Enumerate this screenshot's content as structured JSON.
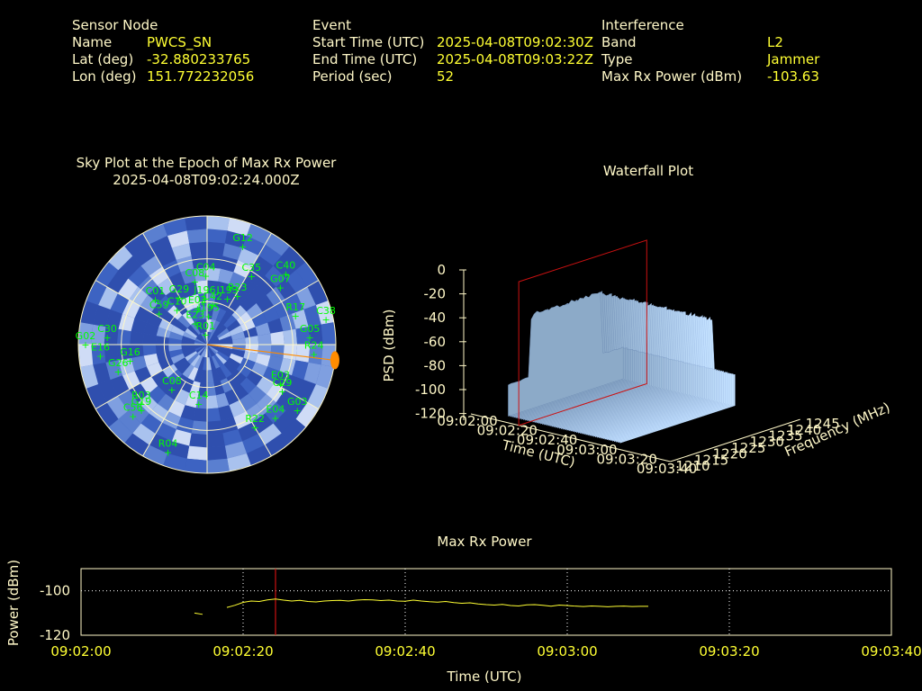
{
  "info": {
    "sensor": {
      "header": "Sensor Node",
      "name_label": "Name",
      "name_value": "PWCS_SN",
      "lat_label": "Lat (deg)",
      "lat_value": "-32.880233765",
      "lon_label": "Lon (deg)",
      "lon_value": "151.772232056"
    },
    "event": {
      "header": "Event",
      "start_label": "Start Time (UTC)",
      "start_value": "2025-04-08T09:02:30Z",
      "end_label": "End Time (UTC)",
      "end_value": "2025-04-08T09:03:22Z",
      "period_label": "Period (sec)",
      "period_value": "52"
    },
    "interference": {
      "header": "Interference",
      "band_label": "Band",
      "band_value": "L2",
      "type_label": "Type",
      "type_value": "Jammer",
      "maxrx_label": "Max Rx Power (dBm)",
      "maxrx_value": "-103.63"
    }
  },
  "colors": {
    "text": "#fff8c8",
    "value": "#ffff33",
    "sat": "#00ff00",
    "red": "#cc1111",
    "orange": "#ff8c00"
  },
  "chart_data": [
    {
      "type": "scatter",
      "name": "sky-plot",
      "title": "Sky Plot at the Epoch of Max Rx Power",
      "subtitle": "2025-04-08T09:02:24.000Z",
      "satellites": [
        {
          "id": "R01",
          "az": 351,
          "el": 83
        },
        {
          "id": "J195",
          "az": 3,
          "el": 70
        },
        {
          "id": "C42",
          "az": 8,
          "el": 62
        },
        {
          "id": "E23",
          "az": 331,
          "el": 73
        },
        {
          "id": "E02",
          "az": 345,
          "el": 64
        },
        {
          "id": "J196",
          "az": 357,
          "el": 58
        },
        {
          "id": "C10",
          "az": 319,
          "el": 58
        },
        {
          "id": "G29",
          "az": 329,
          "el": 52
        },
        {
          "id": "J193",
          "az": 24,
          "el": 55
        },
        {
          "id": "R23",
          "az": 32,
          "el": 50
        },
        {
          "id": "C08",
          "az": 349,
          "el": 45
        },
        {
          "id": "C04",
          "az": 359,
          "el": 42
        },
        {
          "id": "C59",
          "az": 303,
          "el": 50
        },
        {
          "id": "C01",
          "az": 311,
          "el": 42
        },
        {
          "id": "G07",
          "az": 52,
          "el": 25
        },
        {
          "id": "C35",
          "az": 33,
          "el": 33
        },
        {
          "id": "C38",
          "az": 78,
          "el": 5
        },
        {
          "id": "G12",
          "az": 20,
          "el": 17
        },
        {
          "id": "C40",
          "az": 48,
          "el": 16
        },
        {
          "id": "G02",
          "az": 270,
          "el": 5
        },
        {
          "id": "C30",
          "az": 274,
          "el": 20
        },
        {
          "id": "R17",
          "az": 72,
          "el": 25
        },
        {
          "id": "E16",
          "az": 264,
          "el": 15
        },
        {
          "id": "G16",
          "az": 258,
          "el": 35
        },
        {
          "id": "G05",
          "az": 86,
          "el": 18
        },
        {
          "id": "R24",
          "az": 95,
          "el": 15
        },
        {
          "id": "E03",
          "az": 118,
          "el": 32
        },
        {
          "id": "C29",
          "az": 122,
          "el": 28
        },
        {
          "id": "G03",
          "az": 126,
          "el": 12
        },
        {
          "id": "E04",
          "az": 137,
          "el": 20
        },
        {
          "id": "R22",
          "az": 150,
          "el": 23
        },
        {
          "id": "G26",
          "az": 253,
          "el": 25
        },
        {
          "id": "R03",
          "az": 228,
          "el": 28
        },
        {
          "id": "C14",
          "az": 188,
          "el": 48
        },
        {
          "id": "C08b",
          "az": 218,
          "el": 50
        },
        {
          "id": "G19",
          "az": 225,
          "el": 25
        },
        {
          "id": "C56",
          "az": 226,
          "el": 18
        },
        {
          "id": "R04",
          "az": 200,
          "el": 10
        }
      ],
      "interference_azimuth_deg": 97,
      "interference_elevation_deg": 0
    },
    {
      "type": "area",
      "name": "waterfall-plot",
      "title": "Waterfall Plot",
      "xlabel": "Time (UTC)",
      "ylabel": "Frequency (MHz)",
      "zlabel": "PSD (dBm)",
      "x_ticks": [
        "09:02:00",
        "09:02:20",
        "09:02:40",
        "09:03:00",
        "09:03:20",
        "09:03:40"
      ],
      "y_ticks": [
        "1210",
        "1215",
        "1220",
        "1225",
        "1230",
        "1235",
        "1240",
        "1245"
      ],
      "z_ticks": [
        "0",
        "-20",
        "-40",
        "-60",
        "-80",
        "-100",
        "-120"
      ],
      "zlim": [
        -120,
        0
      ],
      "marker_time": "09:02:24",
      "plateau_psd_dbm": -40,
      "plateau_freq_mhz": [
        1218,
        1238
      ],
      "active_time": [
        "09:02:15",
        "09:03:12"
      ]
    },
    {
      "type": "line",
      "name": "max-rx-power",
      "title": "Max Rx Power",
      "xlabel": "Time (UTC)",
      "ylabel": "Power (dBm)",
      "x_ticks": [
        "09:02:00",
        "09:02:20",
        "09:02:40",
        "09:03:00",
        "09:03:20",
        "09:03:40"
      ],
      "y_ticks": [
        "-100",
        "-120"
      ],
      "xlim_sec": [
        0,
        100
      ],
      "ylim": [
        -120,
        -90
      ],
      "marker_sec": 24,
      "series": [
        {
          "x": [
            14,
            15
          ],
          "y": [
            -110.0,
            -110.6
          ]
        },
        {
          "x": [
            18,
            19,
            20,
            21,
            22,
            23,
            24,
            25,
            26,
            27,
            28,
            29,
            30,
            31,
            32,
            33,
            34,
            35,
            36,
            37,
            38,
            39,
            40,
            41,
            42,
            43,
            44,
            45,
            46,
            47,
            48,
            49,
            50,
            51,
            52,
            53,
            54,
            55,
            56,
            57,
            58,
            59,
            60,
            61,
            62,
            63,
            64,
            65,
            66,
            67,
            68,
            69,
            70
          ],
          "y": [
            -107.5,
            -106.5,
            -105.2,
            -104.6,
            -104.8,
            -104.1,
            -103.7,
            -104.2,
            -104.6,
            -104.3,
            -104.8,
            -105.0,
            -104.6,
            -104.4,
            -104.3,
            -104.6,
            -104.2,
            -104.0,
            -104.1,
            -104.4,
            -104.2,
            -104.6,
            -104.7,
            -104.2,
            -104.6,
            -104.9,
            -105.1,
            -104.8,
            -105.3,
            -105.6,
            -105.4,
            -105.9,
            -106.2,
            -106.4,
            -106.1,
            -106.6,
            -106.8,
            -106.3,
            -106.2,
            -106.5,
            -106.9,
            -106.4,
            -106.6,
            -106.9,
            -107.1,
            -106.8,
            -107.0,
            -107.2,
            -107.0,
            -106.9,
            -107.1,
            -107.0,
            -107.0
          ]
        }
      ]
    }
  ]
}
